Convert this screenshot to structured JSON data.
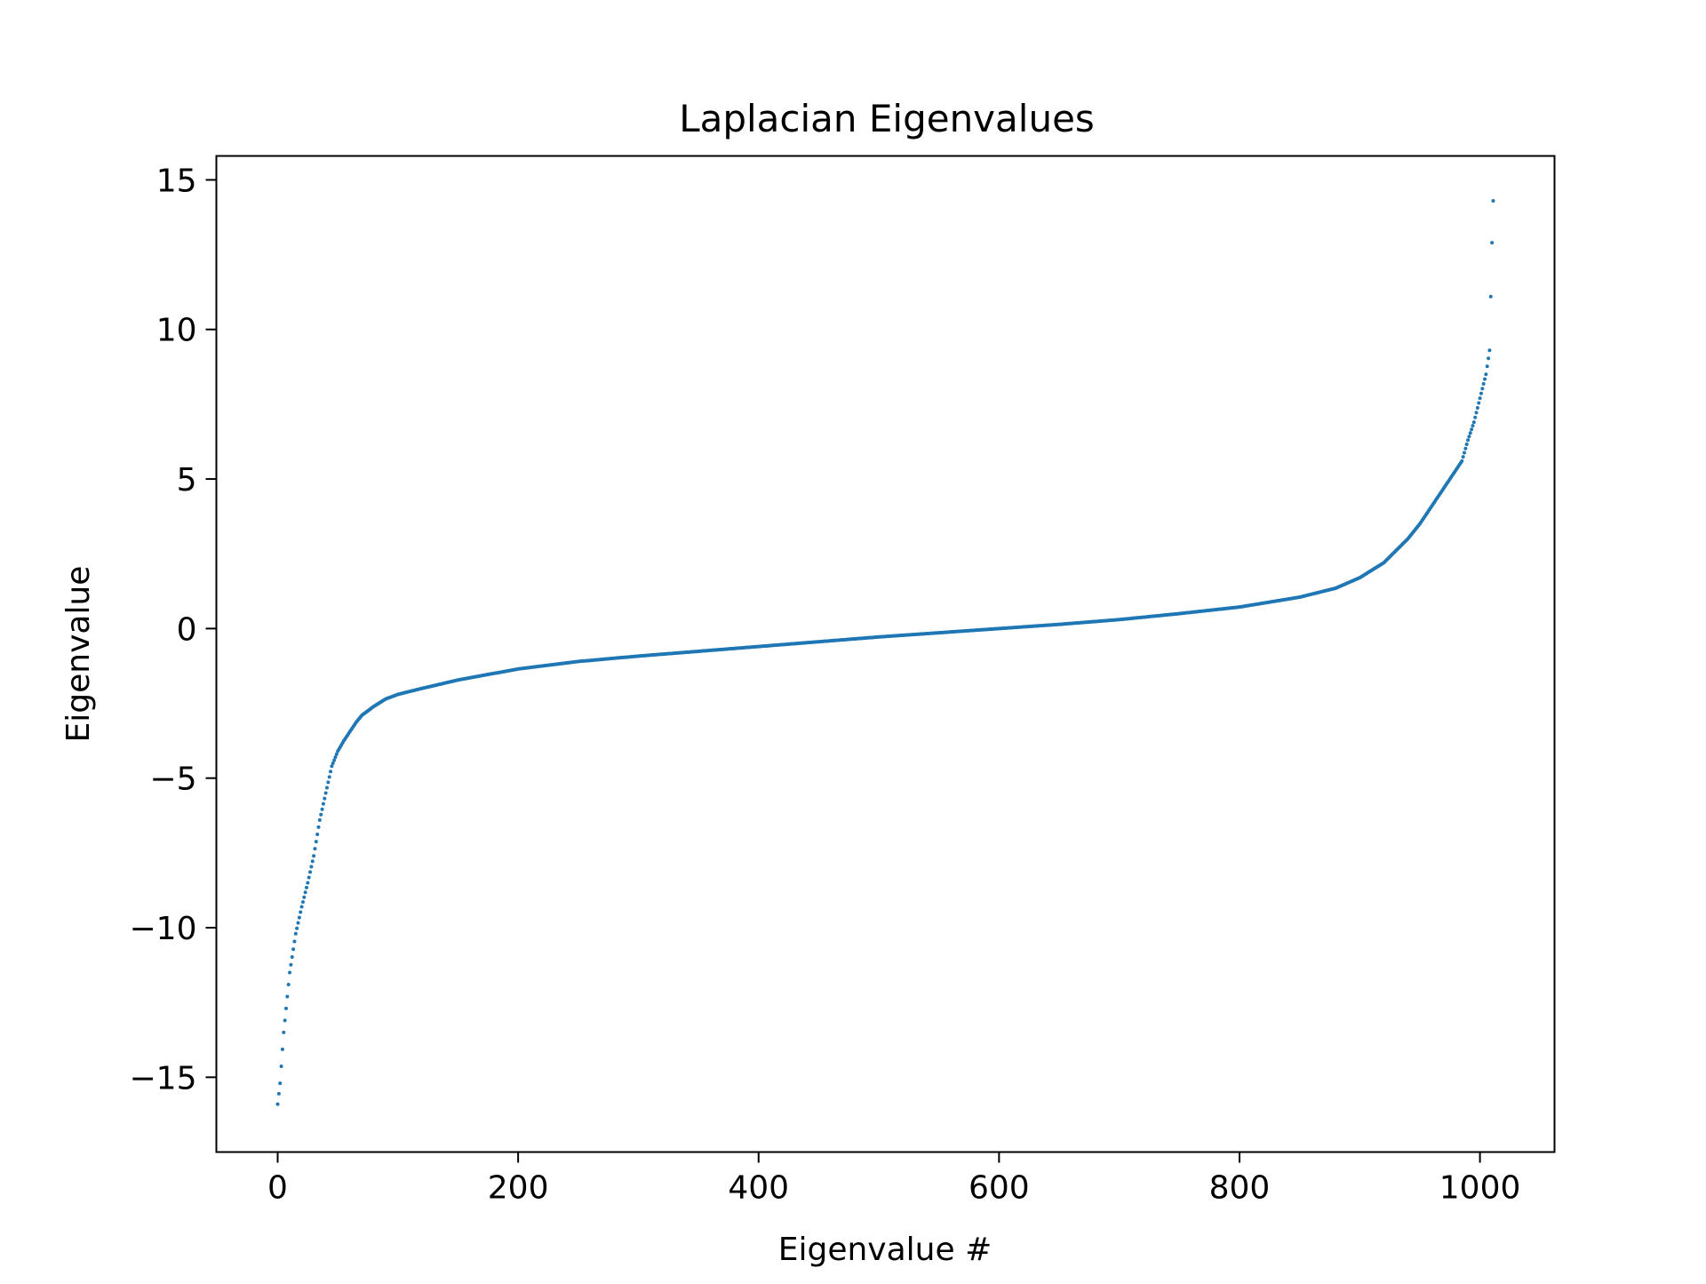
{
  "chart_data": {
    "type": "scatter",
    "title": "Laplacian Eigenvalues",
    "xlabel": "Eigenvalue #",
    "ylabel": "Eigenvalue",
    "xlim": [
      -51,
      1062
    ],
    "ylim": [
      -17.5,
      15.8
    ],
    "xticks": [
      0,
      200,
      400,
      600,
      800,
      1000
    ],
    "yticks": [
      -15,
      -10,
      -5,
      0,
      5,
      10,
      15
    ],
    "xtick_labels": [
      "0",
      "200",
      "400",
      "600",
      "800",
      "1000"
    ],
    "ytick_labels": [
      "−15",
      "−10",
      "−5",
      "0",
      "5",
      "10",
      "15"
    ],
    "grid": false,
    "legend": "none",
    "marker_color": "#1f77b4",
    "series": [
      {
        "points_count": 1012,
        "curve_x": [
          0,
          2,
          5,
          10,
          15,
          20,
          25,
          30,
          35,
          40,
          45,
          50,
          55,
          60,
          65,
          70,
          80,
          90,
          100,
          120,
          150,
          200,
          250,
          300,
          350,
          400,
          450,
          500,
          550,
          600,
          650,
          700,
          750,
          800,
          850,
          880,
          900,
          920,
          940,
          950,
          960,
          970,
          980,
          985,
          990,
          995,
          1000,
          1005,
          1008,
          1010,
          1011
        ],
        "curve_y": [
          -15.9,
          -15.2,
          -13.5,
          -11.5,
          -10.2,
          -9.3,
          -8.5,
          -7.6,
          -6.4,
          -5.5,
          -4.6,
          -4.1,
          -3.75,
          -3.45,
          -3.15,
          -2.9,
          -2.6,
          -2.35,
          -2.2,
          -2.0,
          -1.72,
          -1.35,
          -1.1,
          -0.92,
          -0.76,
          -0.6,
          -0.44,
          -0.28,
          -0.14,
          0.0,
          0.14,
          0.3,
          0.5,
          0.72,
          1.05,
          1.35,
          1.7,
          2.2,
          3.0,
          3.5,
          4.1,
          4.7,
          5.3,
          5.6,
          6.3,
          6.9,
          7.7,
          8.5,
          9.3,
          12.9,
          14.3
        ]
      }
    ]
  }
}
